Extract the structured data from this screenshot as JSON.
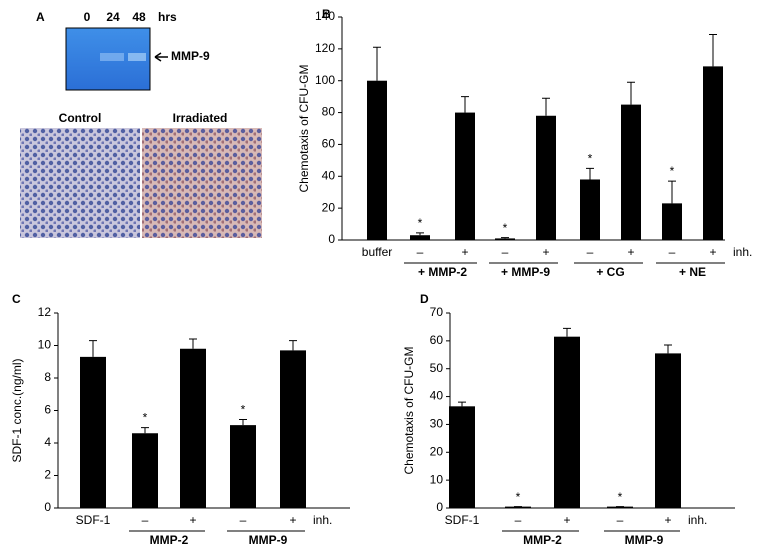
{
  "panel_a": {
    "label": "A",
    "gel_lanes": [
      "0",
      "24",
      "48"
    ],
    "gel_unit": "hrs",
    "band_label": "MMP-9",
    "images": [
      "Control",
      "Irradiated"
    ]
  },
  "chart_data": [
    {
      "type": "bar",
      "label": "B",
      "ylabel": "Chemotaxis of CFU-GM",
      "categories": [
        "buffer",
        "–",
        "+",
        "–",
        "+",
        "–",
        "+",
        "–",
        "+"
      ],
      "groups": [
        "+ MMP-2",
        "+ MMP-9",
        "+ CG",
        "+ NE"
      ],
      "end_label": "inh.",
      "values": [
        100,
        3,
        80,
        1,
        78,
        38,
        85,
        23,
        109
      ],
      "errors": [
        21,
        1.5,
        10,
        0.5,
        11,
        7,
        14,
        14,
        20
      ],
      "significance": [
        null,
        "*",
        null,
        "*",
        null,
        "*",
        null,
        "*",
        null
      ],
      "color": "#000000",
      "ylim": [
        0,
        140
      ],
      "yticks": [
        0,
        20,
        40,
        60,
        80,
        100,
        120,
        140
      ]
    },
    {
      "type": "bar",
      "label": "C",
      "ylabel": "SDF-1 conc.(ng/ml)",
      "categories": [
        "SDF-1",
        "–",
        "+",
        "–",
        "+"
      ],
      "groups": [
        "MMP-2",
        "MMP-9"
      ],
      "end_label": "inh.",
      "values": [
        9.3,
        4.6,
        9.8,
        5.1,
        9.7
      ],
      "errors": [
        1.0,
        0.35,
        0.6,
        0.35,
        0.6
      ],
      "significance": [
        null,
        "*",
        null,
        "*",
        null
      ],
      "color": "#000000",
      "ylim": [
        0,
        12
      ],
      "yticks": [
        0,
        2,
        4,
        6,
        8,
        10,
        12
      ]
    },
    {
      "type": "bar",
      "label": "D",
      "ylabel": "Chemotaxis of CFU-GM",
      "categories": [
        "SDF-1",
        "–",
        "+",
        "–",
        "+"
      ],
      "groups": [
        "MMP-2",
        "MMP-9"
      ],
      "end_label": "inh.",
      "values": [
        36.5,
        0.5,
        61.5,
        0.5,
        55.5
      ],
      "errors": [
        1.5,
        0,
        3,
        0,
        3
      ],
      "significance": [
        null,
        "*",
        null,
        "*",
        null
      ],
      "color": "#000000",
      "ylim": [
        0,
        70
      ],
      "yticks": [
        0,
        10,
        20,
        30,
        40,
        50,
        60,
        70
      ]
    }
  ]
}
